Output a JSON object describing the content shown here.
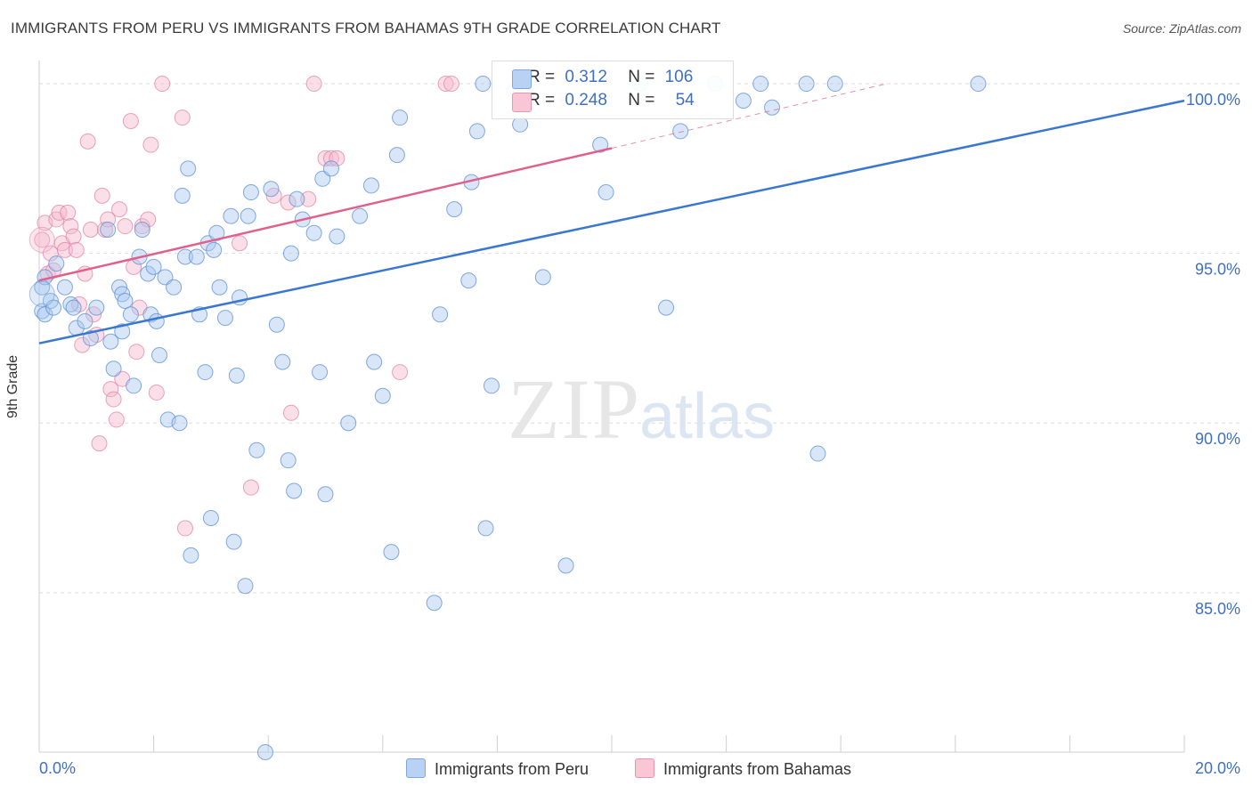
{
  "title": "IMMIGRANTS FROM PERU VS IMMIGRANTS FROM BAHAMAS 9TH GRADE CORRELATION CHART",
  "source": "Source: ZipAtlas.com",
  "watermark": {
    "zip": "ZIP",
    "atlas": "atlas"
  },
  "legend": {
    "peru": {
      "r_label": "R =",
      "r_value": "0.312",
      "n_label": "N =",
      "n_value": "106"
    },
    "bahamas": {
      "r_label": "R =",
      "r_value": "0.248",
      "n_label": "N =",
      "n_value": "54"
    }
  },
  "bottom_legend": {
    "peru": "Immigrants from Peru",
    "bahamas": "Immigrants from Bahamas"
  },
  "colors": {
    "peru_fill": "#a9c7ef",
    "peru_stroke": "#5b8fd6",
    "peru_line": "#3a78d0",
    "bahamas_fill": "#f6b8cb",
    "bahamas_stroke": "#e07e9f",
    "bahamas_line": "#e0608c",
    "axis_blue": "#3f6fc6",
    "grid": "#dddddd"
  },
  "chart_data": {
    "type": "scatter",
    "title": "IMMIGRANTS FROM PERU VS IMMIGRANTS FROM BAHAMAS 9TH GRADE CORRELATION CHART",
    "xlabel": "",
    "ylabel": "9th Grade",
    "xlim": [
      0,
      20
    ],
    "ylim": [
      80.3,
      100.5
    ],
    "x_tick_labels": [
      "0.0%",
      "20.0%"
    ],
    "y_ticks": [
      85,
      90,
      95,
      100
    ],
    "y_tick_labels": [
      "85.0%",
      "90.0%",
      "95.0%",
      "100.0%"
    ],
    "grid": true,
    "series": [
      {
        "name": "Immigrants from Peru",
        "R": 0.312,
        "N": 106,
        "trend": {
          "x": [
            0,
            20
          ],
          "y": [
            92.35,
            99.5
          ]
        },
        "points": [
          [
            0.05,
            94.0
          ],
          [
            0.05,
            93.3
          ],
          [
            0.1,
            93.2
          ],
          [
            0.1,
            94.3
          ],
          [
            0.2,
            93.6
          ],
          [
            0.25,
            93.4
          ],
          [
            0.3,
            94.7
          ],
          [
            0.45,
            94.0
          ],
          [
            0.55,
            93.5
          ],
          [
            0.6,
            93.4
          ],
          [
            0.65,
            92.8
          ],
          [
            0.8,
            93.0
          ],
          [
            0.9,
            92.5
          ],
          [
            1.0,
            93.4
          ],
          [
            1.2,
            95.7
          ],
          [
            1.25,
            92.4
          ],
          [
            1.3,
            91.6
          ],
          [
            1.4,
            94.0
          ],
          [
            1.45,
            93.8
          ],
          [
            1.45,
            92.7
          ],
          [
            1.5,
            93.6
          ],
          [
            1.6,
            93.2
          ],
          [
            1.65,
            91.1
          ],
          [
            1.75,
            94.9
          ],
          [
            1.8,
            95.7
          ],
          [
            1.9,
            94.4
          ],
          [
            1.95,
            93.2
          ],
          [
            2.0,
            94.6
          ],
          [
            2.05,
            93.0
          ],
          [
            2.1,
            92.0
          ],
          [
            2.2,
            94.3
          ],
          [
            2.25,
            90.1
          ],
          [
            2.35,
            94.0
          ],
          [
            2.45,
            90.0
          ],
          [
            2.5,
            96.7
          ],
          [
            2.55,
            94.9
          ],
          [
            2.6,
            97.5
          ],
          [
            2.65,
            86.1
          ],
          [
            2.75,
            94.9
          ],
          [
            2.8,
            93.2
          ],
          [
            2.9,
            91.5
          ],
          [
            2.95,
            95.3
          ],
          [
            3.0,
            87.2
          ],
          [
            3.05,
            95.1
          ],
          [
            3.1,
            95.6
          ],
          [
            3.15,
            94.0
          ],
          [
            3.25,
            93.1
          ],
          [
            3.35,
            96.1
          ],
          [
            3.4,
            86.5
          ],
          [
            3.45,
            91.4
          ],
          [
            3.5,
            93.7
          ],
          [
            3.6,
            85.2
          ],
          [
            3.65,
            96.1
          ],
          [
            3.7,
            96.8
          ],
          [
            3.8,
            89.2
          ],
          [
            3.95,
            80.3
          ],
          [
            4.05,
            96.9
          ],
          [
            4.15,
            92.9
          ],
          [
            4.25,
            91.8
          ],
          [
            4.35,
            88.9
          ],
          [
            4.4,
            95.0
          ],
          [
            4.45,
            88.0
          ],
          [
            4.5,
            96.6
          ],
          [
            4.6,
            96.0
          ],
          [
            4.8,
            95.6
          ],
          [
            4.9,
            91.5
          ],
          [
            4.95,
            97.2
          ],
          [
            5.0,
            87.9
          ],
          [
            5.1,
            97.5
          ],
          [
            5.2,
            95.5
          ],
          [
            5.4,
            90.0
          ],
          [
            5.6,
            96.1
          ],
          [
            5.8,
            97.0
          ],
          [
            5.85,
            91.8
          ],
          [
            6.0,
            90.8
          ],
          [
            6.15,
            86.2
          ],
          [
            6.25,
            97.9
          ],
          [
            6.3,
            99.0
          ],
          [
            6.9,
            84.7
          ],
          [
            7.0,
            93.2
          ],
          [
            7.25,
            96.3
          ],
          [
            7.5,
            94.2
          ],
          [
            7.55,
            97.1
          ],
          [
            7.65,
            98.6
          ],
          [
            7.75,
            100.0
          ],
          [
            7.8,
            86.9
          ],
          [
            7.9,
            91.1
          ],
          [
            8.3,
            99.8
          ],
          [
            8.4,
            98.8
          ],
          [
            8.6,
            100.0
          ],
          [
            8.8,
            94.3
          ],
          [
            9.2,
            85.8
          ],
          [
            9.8,
            98.2
          ],
          [
            9.9,
            96.8
          ],
          [
            10.5,
            100.0
          ],
          [
            10.95,
            93.4
          ],
          [
            11.2,
            98.6
          ],
          [
            11.8,
            100.0
          ],
          [
            12.3,
            99.5
          ],
          [
            12.6,
            100.0
          ],
          [
            12.8,
            99.3
          ],
          [
            13.4,
            100.0
          ],
          [
            13.6,
            89.1
          ],
          [
            13.9,
            100.0
          ],
          [
            16.4,
            100.0
          ]
        ]
      },
      {
        "name": "Immigrants from Bahamas",
        "R": 0.248,
        "N": 54,
        "trend": {
          "x": [
            0,
            10
          ],
          "y": [
            94.2,
            98.1
          ]
        },
        "trend_dashed": {
          "x": [
            10,
            14.8
          ],
          "y": [
            98.1,
            100.0
          ]
        },
        "points": [
          [
            0.05,
            95.4
          ],
          [
            0.1,
            95.9
          ],
          [
            0.15,
            94.4
          ],
          [
            0.2,
            95.0
          ],
          [
            0.25,
            94.5
          ],
          [
            0.3,
            96.0
          ],
          [
            0.35,
            96.2
          ],
          [
            0.4,
            95.3
          ],
          [
            0.45,
            95.1
          ],
          [
            0.5,
            96.2
          ],
          [
            0.55,
            95.8
          ],
          [
            0.6,
            95.5
          ],
          [
            0.65,
            95.1
          ],
          [
            0.7,
            93.5
          ],
          [
            0.75,
            92.3
          ],
          [
            0.8,
            94.4
          ],
          [
            0.85,
            98.3
          ],
          [
            0.9,
            95.7
          ],
          [
            0.95,
            93.2
          ],
          [
            1.0,
            92.6
          ],
          [
            1.05,
            89.4
          ],
          [
            1.1,
            96.7
          ],
          [
            1.15,
            95.7
          ],
          [
            1.2,
            96.0
          ],
          [
            1.25,
            91.0
          ],
          [
            1.3,
            90.7
          ],
          [
            1.35,
            90.1
          ],
          [
            1.4,
            96.3
          ],
          [
            1.45,
            91.3
          ],
          [
            1.5,
            95.8
          ],
          [
            1.6,
            98.9
          ],
          [
            1.65,
            94.6
          ],
          [
            1.7,
            92.1
          ],
          [
            1.75,
            93.4
          ],
          [
            1.8,
            95.8
          ],
          [
            1.9,
            96.0
          ],
          [
            1.95,
            98.2
          ],
          [
            2.05,
            90.9
          ],
          [
            2.15,
            100.0
          ],
          [
            2.5,
            99.0
          ],
          [
            2.55,
            86.9
          ],
          [
            3.5,
            95.3
          ],
          [
            3.7,
            88.1
          ],
          [
            4.1,
            96.7
          ],
          [
            4.35,
            96.5
          ],
          [
            4.4,
            90.3
          ],
          [
            4.7,
            96.6
          ],
          [
            4.8,
            100.0
          ],
          [
            5.0,
            97.8
          ],
          [
            5.1,
            97.8
          ],
          [
            5.2,
            97.8
          ],
          [
            6.3,
            91.5
          ],
          [
            7.1,
            100.0
          ],
          [
            7.2,
            100.0
          ]
        ]
      }
    ]
  }
}
